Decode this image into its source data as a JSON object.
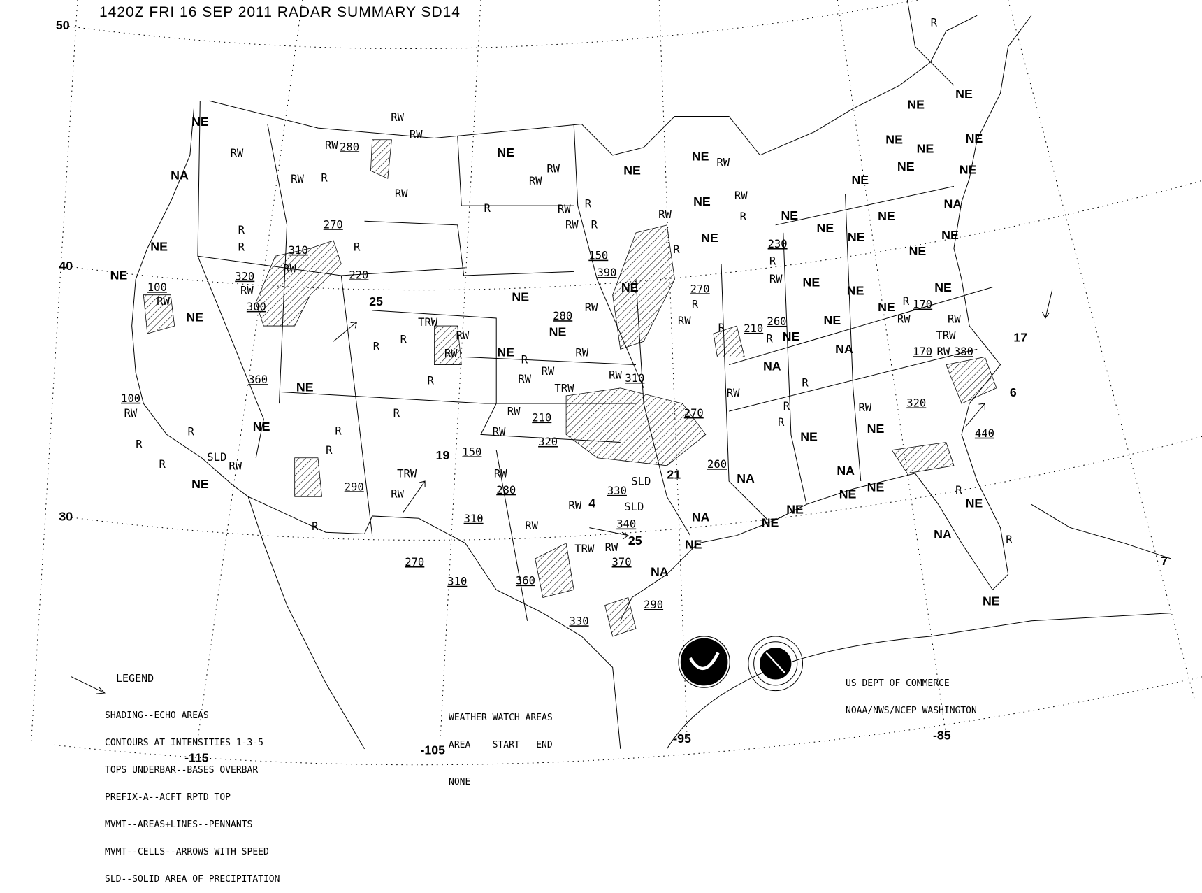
{
  "header": {
    "title": "1420Z FRI 16 SEP 2011 RADAR SUMMARY SD14"
  },
  "graticule": {
    "lat_labels": [
      "50",
      "40",
      "30"
    ],
    "lon_labels": [
      "-115",
      "-105",
      "-95",
      "-85"
    ]
  },
  "legend": {
    "title": "LEGEND",
    "lines": [
      "SHADING--ECHO AREAS",
      "CONTOURS AT INTENSITIES 1-3-5",
      "TOPS UNDERBAR--BASES OVERBAR",
      "PREFIX-A--ACFT RPTD TOP",
      "MVMT--AREAS+LINES--PENNANTS",
      "MVMT--CELLS--ARROWS WITH SPEED",
      "SLD--SOLID AREA OF PRECIPITATION"
    ]
  },
  "watch": {
    "title": "WEATHER WATCH AREAS",
    "columns": "AREA    START   END",
    "value": "NONE"
  },
  "credit": {
    "line1": "US DEPT OF COMMERCE",
    "line2": "NOAA/NWS/NCEP WASHINGTON",
    "logos": [
      "noaa-seal",
      "national-weather-service-seal"
    ]
  },
  "station_labels": [
    "NE",
    "NA",
    "NE",
    "NE",
    "NE",
    "NE",
    "NE",
    "NE",
    "RW",
    "RW",
    "R",
    "RW",
    "280",
    "RW",
    "RW",
    "RW",
    "R",
    "R",
    "270",
    "310",
    "RW",
    "320",
    "RW",
    "300",
    "220",
    "25",
    "R",
    "100",
    "RW",
    "360",
    "100",
    "RW",
    "R",
    "R",
    "SLD",
    "RW",
    "R",
    "290",
    "R",
    "R",
    "R",
    "TRW",
    "RW",
    "R",
    "19",
    "150",
    "TRW",
    "RW",
    "RW",
    "R",
    "R",
    "R",
    "NE",
    "RW",
    "RW",
    "R",
    "RW",
    "RW",
    "R",
    "R",
    "NE",
    "NE",
    "150",
    "390",
    "280",
    "NE",
    "RW",
    "NE",
    "R",
    "RW",
    "RW",
    "RW",
    "TRW",
    "RW",
    "310",
    "210",
    "RW",
    "RW",
    "320",
    "RW",
    "280",
    "RW",
    "4",
    "330",
    "SLD",
    "SLD",
    "340",
    "25",
    "21",
    "260",
    "RW",
    "TRW",
    "RW",
    "370",
    "360",
    "330",
    "290",
    "310",
    "270",
    "310",
    "NE",
    "NE",
    "NE",
    "RW",
    "RW",
    "R",
    "RW",
    "NE",
    "R",
    "270",
    "R",
    "RW",
    "230",
    "R",
    "RW",
    "260",
    "210",
    "NE",
    "R",
    "NA",
    "R",
    "RW",
    "R",
    "R",
    "R",
    "NE",
    "RW",
    "NE",
    "NA",
    "NE",
    "NE",
    "NE",
    "NE",
    "NA",
    "NA",
    "NE",
    "NA",
    "270",
    "NE",
    "NE",
    "NE",
    "NE",
    "NE",
    "NE",
    "NE",
    "NE",
    "NE",
    "NE",
    "NE",
    "NE",
    "NA",
    "NE",
    "NE",
    "NE",
    "NE",
    "NE",
    "NE",
    "NA",
    "NE",
    "170",
    "RW",
    "R",
    "TRW",
    "RW",
    "170",
    "RW",
    "380",
    "17",
    "6",
    "320",
    "440",
    "NE",
    "NA",
    "R",
    "NE",
    "R",
    "7",
    "R"
  ],
  "colors": {
    "background": "#ffffff",
    "ink": "#000000"
  }
}
